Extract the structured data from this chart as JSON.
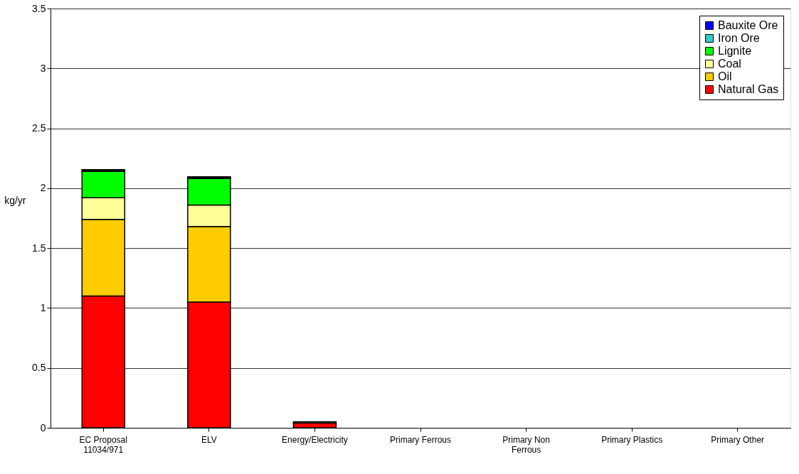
{
  "chart_data": {
    "type": "bar",
    "stacked": true,
    "ylabel": "kg/yr",
    "categories": [
      "EC Proposal 11034/971",
      "ELV",
      "Energy/Electricity",
      "Primary Ferrous",
      "Primary Non Ferrous",
      "Primary Plastics",
      "Primary Other"
    ],
    "series": [
      {
        "name": "Natural Gas",
        "color": "#ff0000",
        "values": [
          1.1,
          1.05,
          0.04,
          0,
          0,
          0,
          0
        ]
      },
      {
        "name": "Oil",
        "color": "#ffcc00",
        "values": [
          0.64,
          0.63,
          0,
          0,
          0,
          0,
          0
        ]
      },
      {
        "name": "Coal",
        "color": "#ffff99",
        "values": [
          0.18,
          0.18,
          0,
          0,
          0,
          0,
          0
        ]
      },
      {
        "name": "Lignite",
        "color": "#00ff00",
        "values": [
          0.22,
          0.22,
          0,
          0,
          0,
          0,
          0
        ]
      },
      {
        "name": "Iron Ore",
        "color": "#33cccc",
        "values": [
          0.01,
          0.01,
          0.01,
          0,
          0,
          0,
          0
        ]
      },
      {
        "name": "Bauxite Ore",
        "color": "#0000ff",
        "values": [
          0.005,
          0.005,
          0,
          0,
          0,
          0,
          0
        ]
      }
    ],
    "ylim": [
      0,
      3.5
    ],
    "yticks": [
      0,
      0.5,
      1,
      1.5,
      2,
      2.5,
      3,
      3.5
    ],
    "grid": "y",
    "legend": "top right"
  }
}
